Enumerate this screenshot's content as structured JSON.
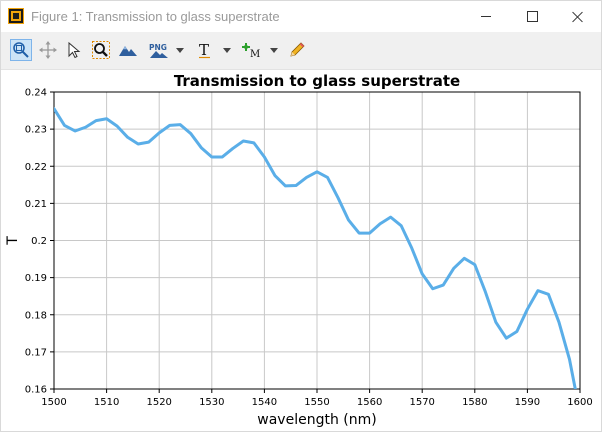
{
  "window": {
    "title": "Figure 1: Transmission to glass superstrate",
    "controls": [
      "minimize",
      "maximize",
      "close"
    ]
  },
  "toolbar": {
    "tools": [
      {
        "name": "zoom-to-fit",
        "icon": "zoom-fit-icon",
        "active": true
      },
      {
        "name": "pan",
        "icon": "move-icon",
        "active": false
      },
      {
        "name": "select",
        "icon": "pointer-icon",
        "active": false
      },
      {
        "name": "zoom",
        "icon": "magnifier-icon",
        "active": false
      },
      {
        "name": "view-3d",
        "icon": "mountain-icon",
        "active": false
      },
      {
        "name": "export-png",
        "icon": "png-icon",
        "label": "PNG",
        "active": false
      },
      {
        "name": "text",
        "icon": "text-icon",
        "label": "T",
        "active": false
      },
      {
        "name": "marker",
        "icon": "marker-icon",
        "label": "M",
        "active": false
      },
      {
        "name": "draw",
        "icon": "pencil-icon",
        "active": false
      }
    ]
  },
  "colors": {
    "series": "#5aaee8",
    "grid": "#c8c8c8",
    "active_tool_bg": "#cce4f7"
  },
  "chart_data": {
    "type": "line",
    "title": "Transmission to glass superstrate",
    "xlabel": "wavelength (nm)",
    "ylabel": "T",
    "xlim": [
      1500,
      1600
    ],
    "ylim": [
      0.16,
      0.24
    ],
    "xticks": [
      1500,
      1510,
      1520,
      1530,
      1540,
      1550,
      1560,
      1570,
      1580,
      1590,
      1600
    ],
    "yticks": [
      "0.16",
      "0.17",
      "0.18",
      "0.19",
      "0.2",
      "0.21",
      "0.22",
      "0.23",
      "0.24"
    ],
    "grid": true,
    "series": [
      {
        "x": [
          1500,
          1502,
          1504,
          1506,
          1508,
          1510,
          1512,
          1514,
          1516,
          1518,
          1520,
          1522,
          1524,
          1526,
          1528,
          1530,
          1532,
          1534,
          1536,
          1538,
          1540,
          1542,
          1544,
          1546,
          1548,
          1550,
          1552,
          1554,
          1556,
          1558,
          1560,
          1562,
          1564,
          1566,
          1568,
          1570,
          1572,
          1574,
          1576,
          1578,
          1580,
          1582,
          1584,
          1586,
          1588,
          1590,
          1592,
          1594,
          1596,
          1598,
          1600
        ],
        "y": [
          0.2355,
          0.231,
          0.2295,
          0.2305,
          0.2323,
          0.2328,
          0.2308,
          0.2278,
          0.226,
          0.2265,
          0.229,
          0.231,
          0.2312,
          0.2288,
          0.225,
          0.2225,
          0.2225,
          0.2248,
          0.2268,
          0.2263,
          0.2225,
          0.2175,
          0.2147,
          0.2148,
          0.217,
          0.2185,
          0.217,
          0.2115,
          0.2055,
          0.202,
          0.202,
          0.2045,
          0.2063,
          0.204,
          0.198,
          0.191,
          0.187,
          0.188,
          0.1925,
          0.1952,
          0.1935,
          0.1862,
          0.178,
          0.1737,
          0.1755,
          0.1815,
          0.1865,
          0.1855,
          0.178,
          0.168,
          0.1535
        ]
      }
    ]
  }
}
